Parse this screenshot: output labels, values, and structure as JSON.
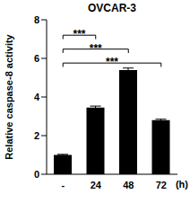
{
  "chart_data": {
    "type": "bar",
    "title": "OVCAR-3",
    "x_label": "(h)",
    "y_label": "Relative caspase-8 activity",
    "categories": [
      "-",
      "24",
      "48",
      "72"
    ],
    "values": [
      1.0,
      3.45,
      5.4,
      2.8
    ],
    "errors": [
      0.03,
      0.08,
      0.1,
      0.05
    ],
    "color": "#000000",
    "ylim": [
      0,
      8
    ],
    "yticks": [
      0,
      2,
      4,
      6,
      8
    ],
    "grid": false,
    "annotations": [
      {
        "text": "***",
        "from": "-",
        "to": "24"
      },
      {
        "text": "***",
        "from": "-",
        "to": "48"
      },
      {
        "text": "***",
        "from": "-",
        "to": "72"
      }
    ]
  }
}
